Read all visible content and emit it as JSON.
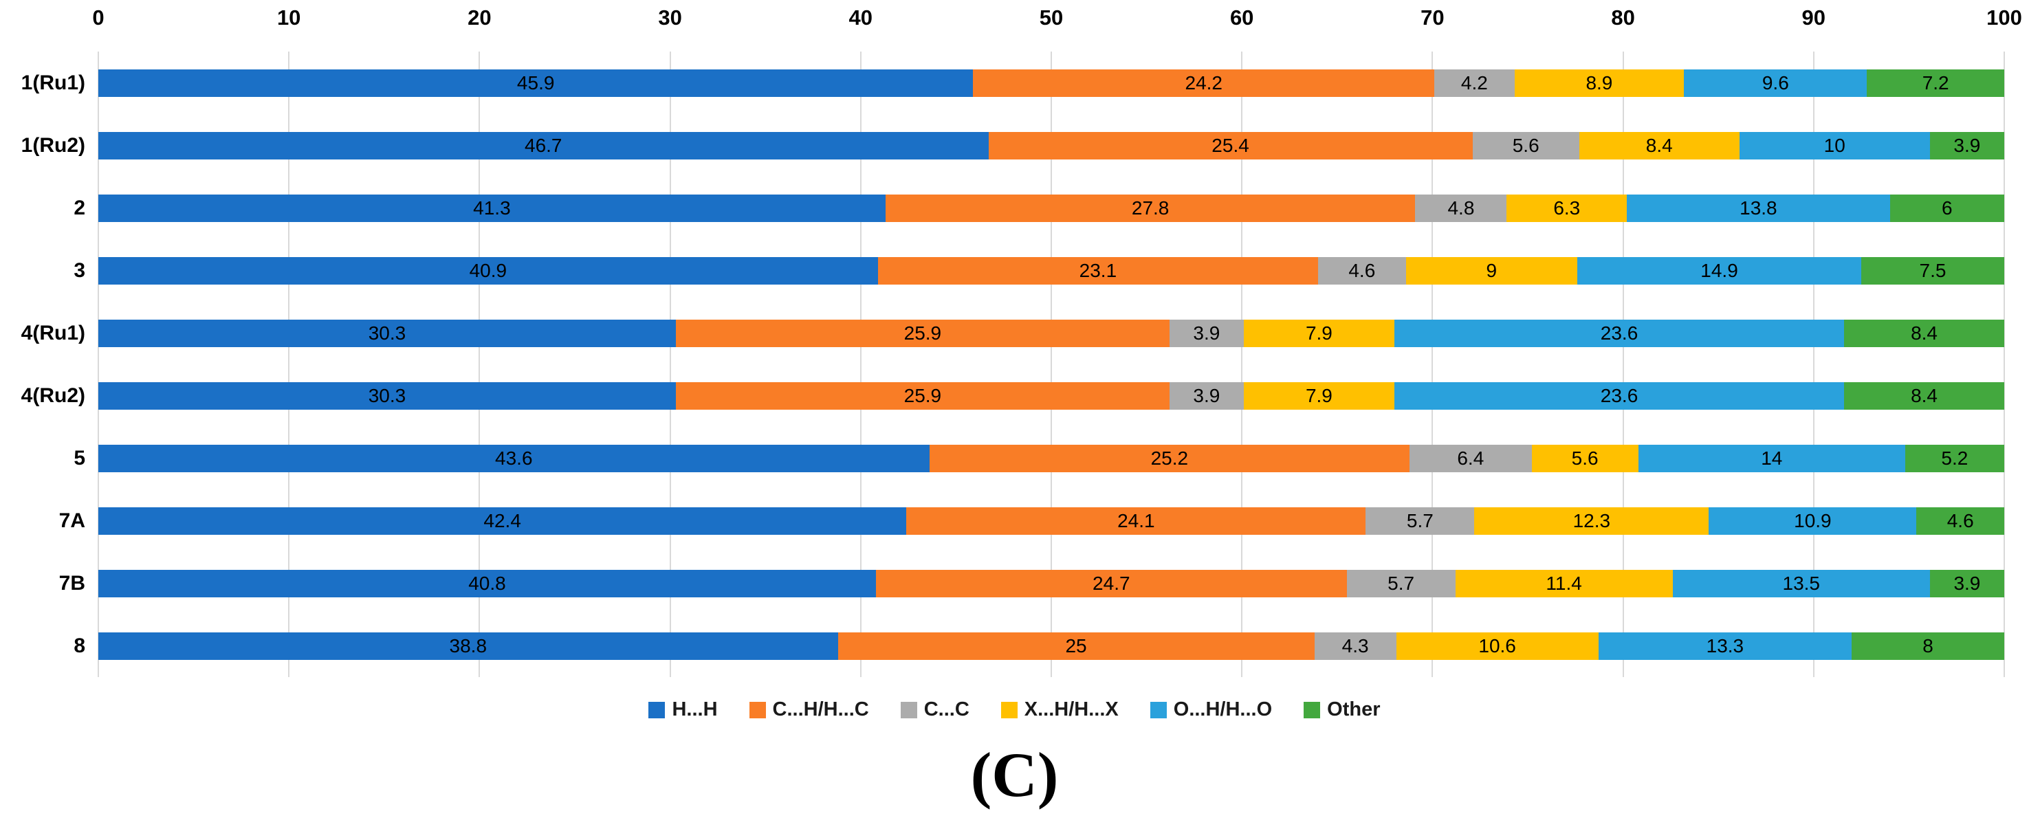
{
  "chart_data": {
    "type": "bar",
    "orientation": "horizontal",
    "stacked": true,
    "title": "",
    "xlabel": "",
    "ylabel": "",
    "xlim": [
      0,
      100
    ],
    "x_ticks": [
      0,
      10,
      20,
      30,
      40,
      50,
      60,
      70,
      80,
      90,
      100
    ],
    "grid": true,
    "legend_position": "bottom",
    "categories": [
      "1(Ru1)",
      "1(Ru2)",
      "2",
      "3",
      "4(Ru1)",
      "4(Ru2)",
      "5",
      "7A",
      "7B",
      "8"
    ],
    "series": [
      {
        "name": "H...H",
        "color": "#1B70C6",
        "values": [
          45.9,
          46.7,
          41.3,
          40.9,
          30.3,
          30.3,
          43.6,
          42.4,
          40.8,
          38.8
        ]
      },
      {
        "name": "C...H/H...C",
        "color": "#F97D26",
        "values": [
          24.2,
          25.4,
          27.8,
          23.1,
          25.9,
          25.9,
          25.2,
          24.1,
          24.7,
          25
        ]
      },
      {
        "name": "C...C",
        "color": "#ACACAC",
        "values": [
          4.2,
          5.6,
          4.8,
          4.6,
          3.9,
          3.9,
          6.4,
          5.7,
          5.7,
          4.3
        ]
      },
      {
        "name": "X...H/H...X",
        "color": "#FFC000",
        "values": [
          8.9,
          8.4,
          6.3,
          9,
          7.9,
          7.9,
          5.6,
          12.3,
          11.4,
          10.6
        ]
      },
      {
        "name": "O...H/H...O",
        "color": "#2AA1DC",
        "values": [
          9.6,
          10,
          13.8,
          14.9,
          23.6,
          23.6,
          14,
          10.9,
          13.5,
          13.3
        ]
      },
      {
        "name": "Other",
        "color": "#43A83E",
        "values": [
          7.2,
          3.9,
          6,
          7.5,
          8.4,
          8.4,
          5.2,
          4.6,
          3.9,
          8
        ]
      }
    ]
  },
  "caption": "(C)",
  "colors": {
    "background": "#FFFFFF",
    "gridline": "#D9D9D9",
    "text": "#000000"
  }
}
